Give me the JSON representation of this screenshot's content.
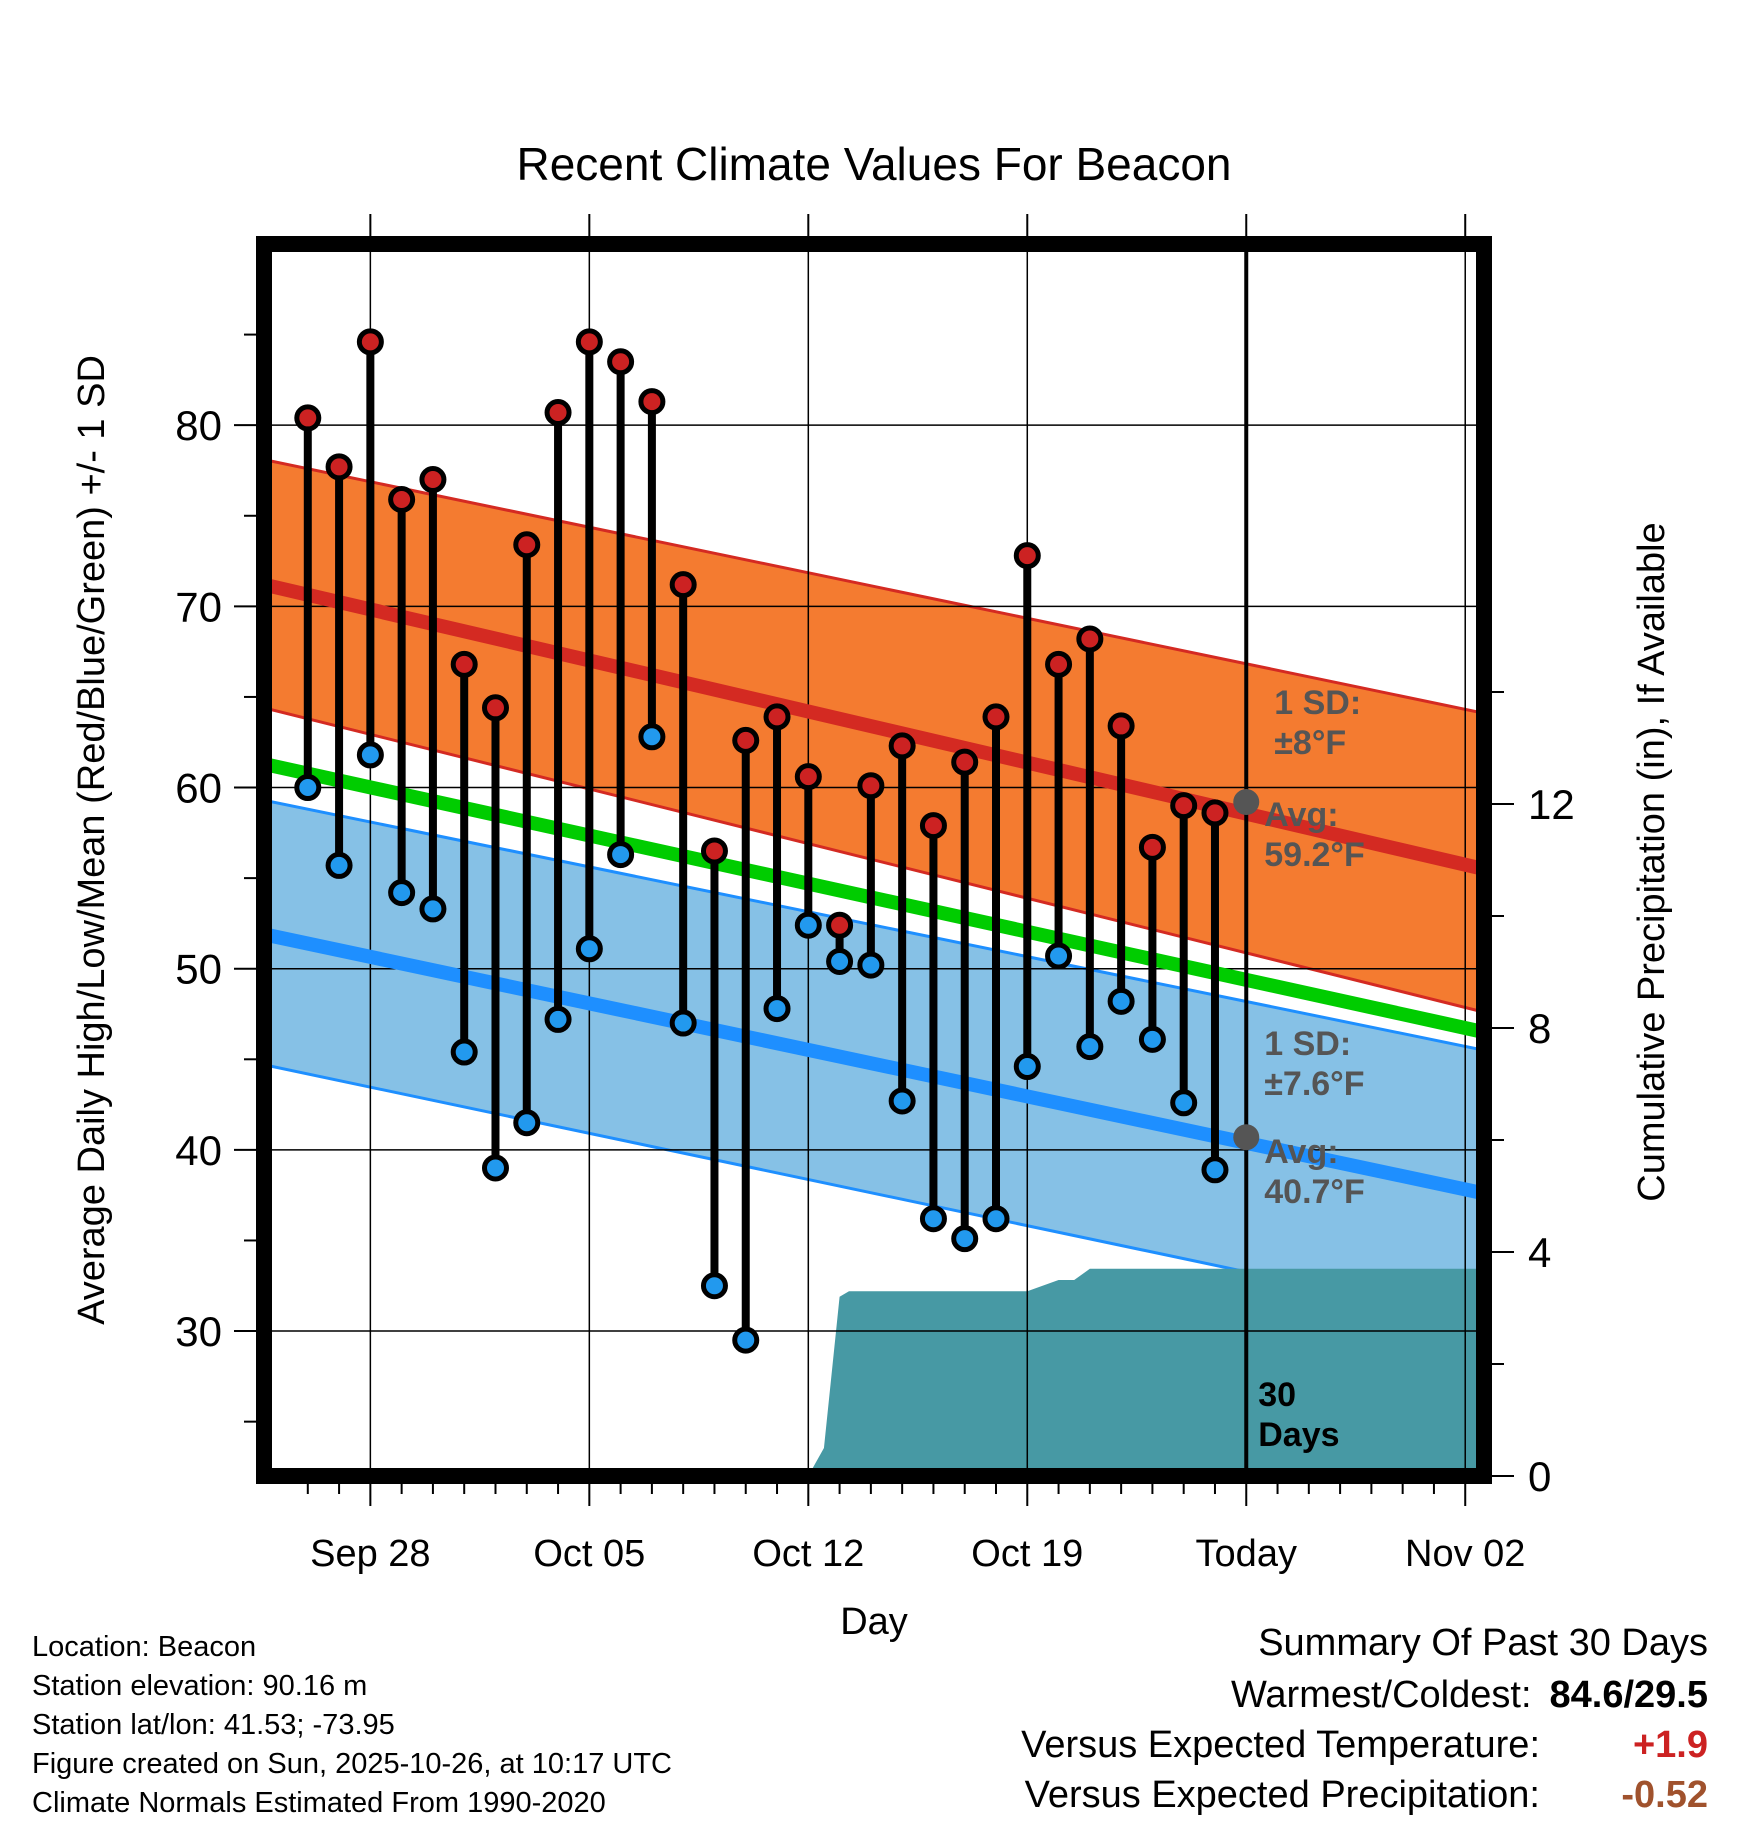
{
  "chart_data": {
    "type": "line",
    "title": "Recent Climate Values For Beacon",
    "xlabel": "Day",
    "ylabel": "Average Daily High/Low/Mean (Red/Blue/Green) +/- 1 SD",
    "y2label": "Cumulative Precipitation (in), If Available",
    "x_range": [
      -3.4,
      35.6
    ],
    "ylim": [
      22,
      90
    ],
    "y2lim": [
      0,
      22
    ],
    "y_ticks": [
      30,
      40,
      50,
      60,
      70,
      80
    ],
    "y2_ticks": [
      0,
      4,
      8,
      12
    ],
    "x_ticks": [
      {
        "day": 0,
        "label": "Sep 28"
      },
      {
        "day": 7,
        "label": "Oct 05"
      },
      {
        "day": 14,
        "label": "Oct 12"
      },
      {
        "day": 21,
        "label": "Oct 19"
      },
      {
        "day": 28,
        "label": "Today"
      },
      {
        "day": 35,
        "label": "Nov 02"
      }
    ],
    "grid": true,
    "today_day": 28,
    "today_label": "30 Days",
    "days": [
      -2,
      -1,
      0,
      1,
      2,
      3,
      4,
      5,
      6,
      7,
      8,
      9,
      10,
      11,
      12,
      13,
      14,
      15,
      16,
      17,
      18,
      19,
      20,
      21,
      22,
      23,
      24,
      25,
      26,
      27
    ],
    "daily_high": [
      80.4,
      77.7,
      84.6,
      75.9,
      77.0,
      66.8,
      64.4,
      73.4,
      80.7,
      84.6,
      83.5,
      81.3,
      71.2,
      56.5,
      62.6,
      63.9,
      60.6,
      52.4,
      60.1,
      62.3,
      57.9,
      61.4,
      63.9,
      72.8,
      66.8,
      68.2,
      63.4,
      56.7,
      59.0,
      58.6
    ],
    "daily_low": [
      60.0,
      55.7,
      61.8,
      54.2,
      53.3,
      45.4,
      39.0,
      41.5,
      47.2,
      51.1,
      56.3,
      62.8,
      47.0,
      32.5,
      29.5,
      47.8,
      52.4,
      50.4,
      50.2,
      42.7,
      36.2,
      35.1,
      36.2,
      44.6,
      50.7,
      45.7,
      48.2,
      46.1,
      42.6,
      38.9
    ],
    "normal_high_band": {
      "start_day": -3.4,
      "end_day": 35.6,
      "avg": [
        71.2,
        55.5
      ],
      "upper": [
        78.1,
        64.1
      ],
      "lower": [
        64.4,
        47.6
      ]
    },
    "normal_low_band": {
      "start_day": -3.4,
      "end_day": 35.6,
      "avg": [
        51.9,
        37.6
      ],
      "upper": [
        59.3,
        45.5
      ],
      "lower": [
        44.7,
        30.5
      ]
    },
    "normal_mean": {
      "start_day": -3.4,
      "end_day": 35.6,
      "values": [
        61.3,
        46.5
      ]
    },
    "cumulative_precip": [
      [
        -3.4,
        0
      ],
      [
        14,
        0
      ],
      [
        14.2,
        0.2
      ],
      [
        14.5,
        0.5
      ],
      [
        15,
        3.2
      ],
      [
        15.3,
        3.3
      ],
      [
        21,
        3.3
      ],
      [
        21.5,
        3.4
      ],
      [
        22,
        3.5
      ],
      [
        22.5,
        3.5
      ],
      [
        23,
        3.7
      ],
      [
        24,
        3.7
      ],
      [
        35.6,
        3.7
      ]
    ],
    "annotations": {
      "high_sd": "1 SD:",
      "high_sd_val": "±8°F",
      "high_avg": "Avg:",
      "high_avg_val": "59.2°F",
      "low_sd": "1 SD:",
      "low_sd_val": "±7.6°F",
      "low_avg": "Avg:",
      "low_avg_val": "40.7°F",
      "high_avg_value": 59.2,
      "low_avg_value": 40.7
    },
    "colors": {
      "high_band": "#f47b30",
      "high_line": "#d42a22",
      "low_band": "#86c1e6",
      "low_line": "#1e8fff",
      "mean_line": "#00cc00",
      "precip": "#4799a4",
      "high_marker": "#cc2222",
      "low_marker": "#2299ee",
      "annotation": "#555555"
    }
  },
  "metadata": {
    "location": "Location: Beacon",
    "elevation": "Station elevation: 90.16 m",
    "latlon": "Station lat/lon: 41.53; -73.95",
    "created": "Figure created on Sun, 2025-10-26, at 10:17 UTC",
    "normals": "Climate Normals Estimated From 1990-2020"
  },
  "summary": {
    "title": "Summary Of Past 30 Days",
    "warm_cold_label": "Warmest/Coldest:",
    "warm_cold_value": "84.6/29.5",
    "temp_label": "Versus Expected Temperature:",
    "temp_value": "+1.9",
    "temp_color": "#cc2222",
    "precip_label": "Versus Expected Precipitation:",
    "precip_value": "-0.52",
    "precip_color": "#a0522d"
  }
}
